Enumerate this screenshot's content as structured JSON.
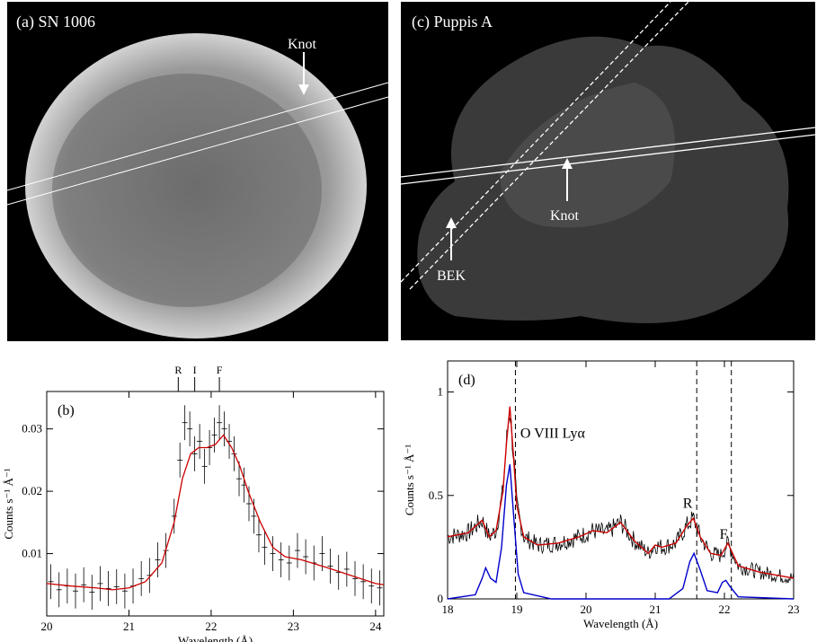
{
  "chart_data": [
    {
      "panel": "a",
      "type": "image",
      "panel_label": "(a) SN 1006",
      "annotations": [
        "Knot"
      ]
    },
    {
      "panel": "c",
      "type": "image",
      "panel_label": "(c) Puppis A",
      "annotations": [
        "Knot",
        "BEK"
      ]
    },
    {
      "panel": "b",
      "type": "line",
      "panel_label": "(b)",
      "xlabel": "Wavelength (Å)",
      "ylabel": "Counts s⁻¹ Å⁻¹",
      "xlim": [
        20,
        24.1
      ],
      "ylim": [
        0,
        0.036
      ],
      "xticks": [
        20,
        21,
        22,
        23,
        24
      ],
      "yticks": [
        0.01,
        0.02,
        0.03
      ],
      "ytick_labels": [
        "0.01",
        "0.02",
        "0.03"
      ],
      "line_markers": [
        {
          "label": "R",
          "x": 21.6
        },
        {
          "label": "I",
          "x": 21.8
        },
        {
          "label": "F",
          "x": 22.1
        }
      ],
      "model": {
        "x": [
          20.0,
          20.3,
          20.6,
          20.8,
          21.0,
          21.2,
          21.4,
          21.55,
          21.65,
          21.75,
          21.85,
          21.95,
          22.05,
          22.15,
          22.25,
          22.35,
          22.45,
          22.6,
          22.75,
          22.9,
          23.1,
          23.4,
          23.7,
          24.0,
          24.1
        ],
        "y": [
          0.0052,
          0.0048,
          0.0045,
          0.0042,
          0.0045,
          0.0055,
          0.0085,
          0.015,
          0.022,
          0.026,
          0.027,
          0.027,
          0.0275,
          0.029,
          0.027,
          0.024,
          0.02,
          0.015,
          0.011,
          0.0095,
          0.009,
          0.0078,
          0.0065,
          0.0052,
          0.005
        ]
      },
      "data": {
        "x": [
          20.05,
          20.15,
          20.25,
          20.35,
          20.45,
          20.55,
          20.65,
          20.75,
          20.85,
          20.95,
          21.05,
          21.15,
          21.25,
          21.35,
          21.45,
          21.55,
          21.62,
          21.68,
          21.74,
          21.8,
          21.86,
          21.92,
          21.98,
          22.04,
          22.1,
          22.16,
          22.22,
          22.28,
          22.34,
          22.4,
          22.46,
          22.52,
          22.58,
          22.65,
          22.75,
          22.85,
          22.95,
          23.05,
          23.15,
          23.25,
          23.35,
          23.45,
          23.55,
          23.65,
          23.75,
          23.85,
          23.95,
          24.05
        ],
        "y": [
          0.0055,
          0.0042,
          0.0048,
          0.004,
          0.005,
          0.0038,
          0.0052,
          0.0044,
          0.0047,
          0.004,
          0.0048,
          0.006,
          0.0065,
          0.009,
          0.0105,
          0.016,
          0.025,
          0.031,
          0.03,
          0.026,
          0.028,
          0.024,
          0.027,
          0.029,
          0.031,
          0.03,
          0.028,
          0.026,
          0.022,
          0.021,
          0.018,
          0.016,
          0.013,
          0.011,
          0.01,
          0.009,
          0.0085,
          0.0105,
          0.0095,
          0.0085,
          0.01,
          0.008,
          0.007,
          0.0075,
          0.006,
          0.0055,
          0.0048,
          0.0045
        ],
        "err": 0.0028
      }
    },
    {
      "panel": "d",
      "type": "line",
      "panel_label": "(d)",
      "xlabel": "Wavelength (Å)",
      "ylabel": "Counts s⁻¹ Å⁻¹",
      "xlim": [
        18,
        23
      ],
      "ylim": [
        0,
        1.15
      ],
      "xticks": [
        18,
        19,
        20,
        21,
        22,
        23
      ],
      "yticks": [
        0,
        0.5,
        1
      ],
      "ytick_labels": [
        "0",
        "0.5",
        "1"
      ],
      "dashed_lines": [
        18.98,
        21.6,
        22.1
      ],
      "annotations": [
        {
          "text": "O VIII Lyα",
          "x": 19.05,
          "y": 0.78
        },
        {
          "text": "R",
          "x": 21.4,
          "y": 0.44
        },
        {
          "text": "F",
          "x": 21.93,
          "y": 0.29
        }
      ],
      "series": [
        {
          "color": "#cc0000",
          "x": [
            18.0,
            18.3,
            18.5,
            18.6,
            18.7,
            18.8,
            18.85,
            18.9,
            18.95,
            19.0,
            19.1,
            19.3,
            19.6,
            19.9,
            20.1,
            20.3,
            20.5,
            20.7,
            20.9,
            21.0,
            21.1,
            21.3,
            21.45,
            21.55,
            21.65,
            21.8,
            21.95,
            22.05,
            22.2,
            22.5,
            23.0
          ],
          "y": [
            0.3,
            0.32,
            0.38,
            0.3,
            0.33,
            0.52,
            0.75,
            0.93,
            0.7,
            0.45,
            0.3,
            0.26,
            0.27,
            0.3,
            0.33,
            0.32,
            0.37,
            0.28,
            0.22,
            0.26,
            0.25,
            0.27,
            0.35,
            0.39,
            0.3,
            0.22,
            0.21,
            0.27,
            0.16,
            0.13,
            0.1
          ]
        },
        {
          "color": "#0000cc",
          "x": [
            18.0,
            18.4,
            18.5,
            18.55,
            18.62,
            18.7,
            18.78,
            18.85,
            18.9,
            18.95,
            19.02,
            19.1,
            19.5,
            21.2,
            21.4,
            21.5,
            21.56,
            21.65,
            21.75,
            21.9,
            21.97,
            22.02,
            22.08,
            22.2,
            23.0
          ],
          "y": [
            0.0,
            0.02,
            0.1,
            0.15,
            0.1,
            0.08,
            0.25,
            0.55,
            0.65,
            0.42,
            0.12,
            0.03,
            0.0,
            0.0,
            0.05,
            0.18,
            0.22,
            0.14,
            0.04,
            0.03,
            0.08,
            0.09,
            0.06,
            0.01,
            0.0
          ]
        }
      ],
      "data": {
        "color": "#000000",
        "noise": 0.05
      }
    }
  ]
}
